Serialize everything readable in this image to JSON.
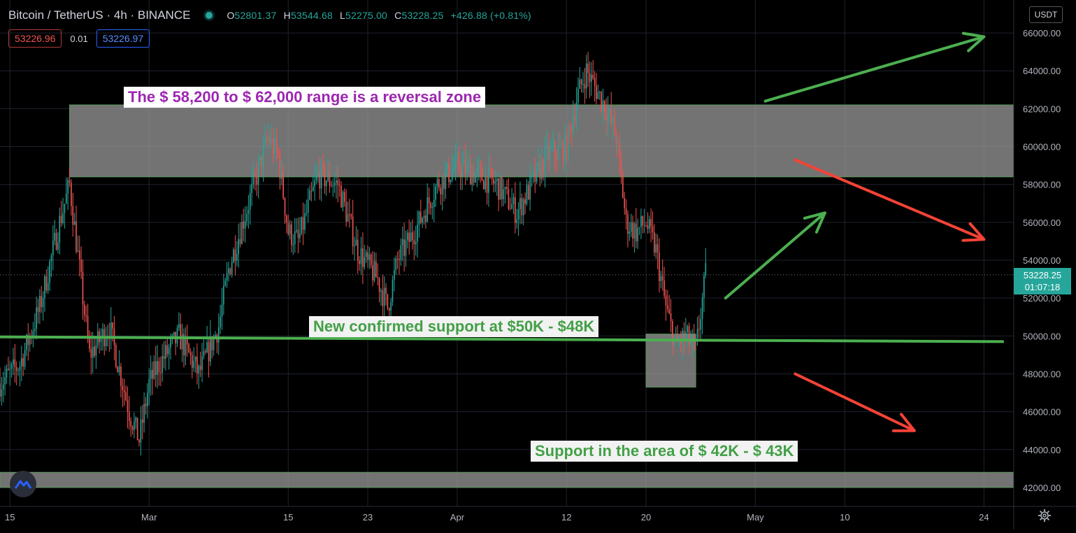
{
  "header": {
    "symbol": "Bitcoin / TetherUS · 4h · BINANCE",
    "ohlc": {
      "o_label": "O",
      "o": "52801.37",
      "h_label": "H",
      "h": "53544.68",
      "l_label": "L",
      "l": "52275.00",
      "c_label": "C",
      "c": "53228.25",
      "change": "+426.88 (+0.81%)"
    }
  },
  "trade": {
    "sell": "53226.96",
    "spread": "0.01",
    "buy": "53226.97"
  },
  "currency": "USDT",
  "last_price": {
    "price": "53228.25",
    "countdown": "01:07:18"
  },
  "colors": {
    "background": "#000000",
    "up": "#26a69a",
    "down": "#ef5350",
    "grid": "#1e222d",
    "zone": "#8a8a8a",
    "support_line": "#4caf50",
    "arrow_up": "#4caf50",
    "arrow_down": "#f44336",
    "label_purple": "#9c27b0",
    "label_green": "#43a047"
  },
  "icons": {
    "logo": "tradingview-logo-icon",
    "settings": "gear-icon",
    "status": "market-open-dot-icon"
  },
  "annotations": {
    "reversal_zone": "The $ 58,200 to $ 62,000 range is a reversal zone",
    "support_50k": "New confirmed support at $50K - $48K",
    "support_42k": "Support in the area of $ 42K - $ 43K"
  },
  "chart_data": {
    "type": "candlestick",
    "x_ticks": [
      "15",
      "Mar",
      "15",
      "23",
      "Apr",
      "12",
      "20",
      "May",
      "10",
      "24"
    ],
    "x_tick_dates": [
      "2021-02-15",
      "2021-03-01",
      "2021-03-15",
      "2021-03-23",
      "2021-04-01",
      "2021-04-12",
      "2021-04-20",
      "2021-05-01",
      "2021-05-10",
      "2021-05-24"
    ],
    "y_ticks": [
      "66000.00",
      "64000.00",
      "62000.00",
      "60000.00",
      "58000.00",
      "56000.00",
      "54000.00",
      "52000.00",
      "50000.00",
      "48000.00",
      "46000.00",
      "44000.00",
      "42000.00"
    ],
    "ylim": [
      41000,
      67000
    ],
    "xlim": [
      "2021-02-14",
      "2021-05-27"
    ],
    "price_path": [
      [
        "2021-02-14",
        47500
      ],
      [
        "2021-02-16",
        48500
      ],
      [
        "2021-02-18",
        51500
      ],
      [
        "2021-02-20",
        56000
      ],
      [
        "2021-02-21",
        58000
      ],
      [
        "2021-02-23",
        49000
      ],
      [
        "2021-02-25",
        50500
      ],
      [
        "2021-02-27",
        46000
      ],
      [
        "2021-02-28",
        44500
      ],
      [
        "2021-03-01",
        47500
      ],
      [
        "2021-03-02",
        48500
      ],
      [
        "2021-03-04",
        50000
      ],
      [
        "2021-03-06",
        48000
      ],
      [
        "2021-03-08",
        50500
      ],
      [
        "2021-03-09",
        53500
      ],
      [
        "2021-03-11",
        57000
      ],
      [
        "2021-03-13",
        60500
      ],
      [
        "2021-03-14",
        59500
      ],
      [
        "2021-03-15",
        55500
      ],
      [
        "2021-03-16",
        55000
      ],
      [
        "2021-03-18",
        58500
      ],
      [
        "2021-03-20",
        58000
      ],
      [
        "2021-03-22",
        54500
      ],
      [
        "2021-03-24",
        53000
      ],
      [
        "2021-03-25",
        51500
      ],
      [
        "2021-03-26",
        54000
      ],
      [
        "2021-03-28",
        55800
      ],
      [
        "2021-03-30",
        58000
      ],
      [
        "2021-04-01",
        59000
      ],
      [
        "2021-04-03",
        58500
      ],
      [
        "2021-04-05",
        58000
      ],
      [
        "2021-04-07",
        56500
      ],
      [
        "2021-04-08",
        57500
      ],
      [
        "2021-04-10",
        59500
      ],
      [
        "2021-04-12",
        60000
      ],
      [
        "2021-04-13",
        62500
      ],
      [
        "2021-04-14",
        64000
      ],
      [
        "2021-04-16",
        62000
      ],
      [
        "2021-04-17",
        60500
      ],
      [
        "2021-04-18",
        56000
      ],
      [
        "2021-04-19",
        55500
      ],
      [
        "2021-04-20",
        56000
      ],
      [
        "2021-04-21",
        54500
      ],
      [
        "2021-04-22",
        51500
      ],
      [
        "2021-04-23",
        49500
      ],
      [
        "2021-04-24",
        50000
      ],
      [
        "2021-04-25",
        49200
      ],
      [
        "2021-04-26",
        53228
      ]
    ],
    "zones": [
      {
        "from": "2021-02-21",
        "to": "2021-05-27",
        "low": 58400,
        "high": 62200
      },
      {
        "from": "2021-02-14",
        "to": "2021-05-27",
        "low": 42000,
        "high": 42800
      },
      {
        "from": "2021-04-20",
        "to": "2021-04-25",
        "low": 47300,
        "high": 50100
      }
    ],
    "support_line": {
      "from": [
        "2021-02-14",
        49950
      ],
      "to": [
        "2021-05-26",
        49700
      ]
    },
    "arrows": [
      {
        "direction": "up",
        "from": [
          "2021-05-02",
          62400
        ],
        "to": [
          "2021-05-24",
          65800
        ]
      },
      {
        "direction": "down",
        "from": [
          "2021-05-05",
          59300
        ],
        "to": [
          "2021-05-24",
          55100
        ]
      },
      {
        "direction": "up",
        "from": [
          "2021-04-28",
          52000
        ],
        "to": [
          "2021-05-08",
          56500
        ]
      },
      {
        "direction": "down",
        "from": [
          "2021-05-05",
          48000
        ],
        "to": [
          "2021-05-17",
          45000
        ]
      }
    ]
  }
}
